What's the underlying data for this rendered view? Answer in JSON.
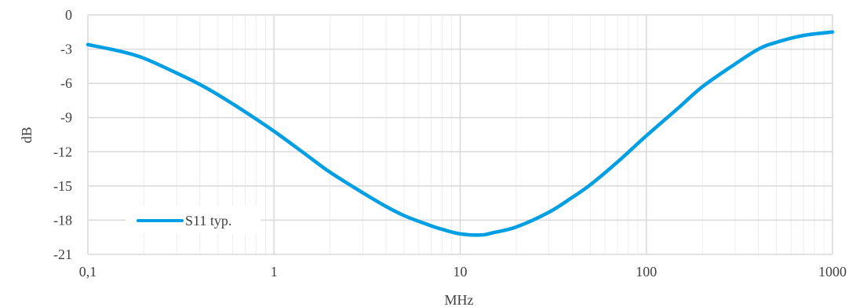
{
  "chart_data": {
    "type": "line",
    "xscale": "log",
    "xlabel": "MHz",
    "ylabel": "dB",
    "xlim": [
      0.1,
      1000
    ],
    "ylim": [
      -21,
      0
    ],
    "x_ticks": [
      0.1,
      1,
      10,
      100,
      1000
    ],
    "x_tick_labels": [
      "0,1",
      "1",
      "10",
      "100",
      "1000"
    ],
    "y_ticks": [
      0,
      -3,
      -6,
      -9,
      -12,
      -15,
      -18,
      -21
    ],
    "y_tick_labels": [
      "0",
      "-3",
      "-6",
      "-9",
      "-12",
      "-15",
      "-18",
      "-21"
    ],
    "grid": true,
    "legend_position": "bottom-left",
    "colors": {
      "series": "#009FE3",
      "grid_major": "#D9D9D9",
      "grid_minor": "#EDEDED",
      "text": "#404040"
    },
    "series": [
      {
        "name": "S11 typ.",
        "x": [
          0.1,
          0.15,
          0.2,
          0.3,
          0.4,
          0.5,
          0.7,
          1,
          1.5,
          2,
          3,
          4,
          5,
          6,
          7,
          8,
          10,
          13,
          15,
          20,
          30,
          40,
          50,
          70,
          100,
          150,
          200,
          300,
          400,
          500,
          700,
          1000
        ],
        "values": [
          -2.6,
          -3.2,
          -3.8,
          -5.1,
          -6.1,
          -7.0,
          -8.5,
          -10.2,
          -12.3,
          -13.8,
          -15.6,
          -16.8,
          -17.6,
          -18.1,
          -18.5,
          -18.8,
          -19.2,
          -19.3,
          -19.1,
          -18.6,
          -17.3,
          -16.0,
          -14.9,
          -12.9,
          -10.6,
          -8.1,
          -6.3,
          -4.3,
          -3.0,
          -2.4,
          -1.8,
          -1.5
        ]
      }
    ]
  }
}
